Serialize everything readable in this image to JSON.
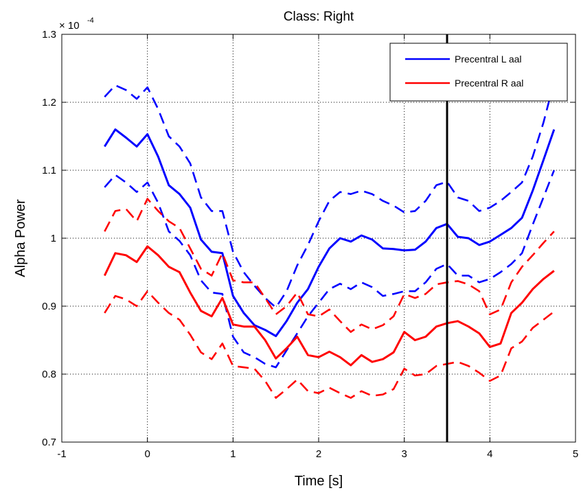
{
  "chart_data": {
    "type": "line",
    "title": "Class: Right",
    "xlabel": "Time [s]",
    "ylabel": "Alpha Power",
    "y_exponent_prefix": "× 10",
    "y_exponent_power": "-4",
    "xlim": [
      -1,
      5
    ],
    "ylim": [
      0.7,
      1.3
    ],
    "xticks": [
      -1,
      0,
      1,
      2,
      3,
      4,
      5
    ],
    "xtick_labels": [
      "-1",
      "0",
      "1",
      "2",
      "3",
      "4",
      "5"
    ],
    "yticks": [
      0.7,
      0.8,
      0.9,
      1.0,
      1.1,
      1.2,
      1.3
    ],
    "ytick_labels": [
      "0.7",
      "0.8",
      "0.9",
      "1",
      "1.1",
      "1.2",
      "1.3"
    ],
    "grid": true,
    "legend_position": "top-right",
    "vertical_line_x": 3.5,
    "colors": {
      "blue": "#0000ff",
      "red": "#ff0000",
      "marker": "#000000"
    },
    "x": [
      -0.5,
      -0.375,
      -0.25,
      -0.125,
      0,
      0.125,
      0.25,
      0.375,
      0.5,
      0.625,
      0.75,
      0.875,
      1,
      1.125,
      1.25,
      1.375,
      1.5,
      1.625,
      1.75,
      1.875,
      2,
      2.125,
      2.25,
      2.375,
      2.5,
      2.625,
      2.75,
      2.875,
      3,
      3.125,
      3.25,
      3.375,
      3.5,
      3.625,
      3.75,
      3.875,
      4,
      4.125,
      4.25,
      4.375,
      4.5,
      4.625,
      4.75
    ],
    "series": [
      {
        "name": "Precentral L aal",
        "color": "#0000ff",
        "style": "solid",
        "values": [
          1.135,
          1.16,
          1.148,
          1.135,
          1.153,
          1.12,
          1.078,
          1.065,
          1.045,
          0.998,
          0.98,
          0.978,
          0.915,
          0.89,
          0.872,
          0.865,
          0.856,
          0.878,
          0.905,
          0.925,
          0.958,
          0.985,
          1.0,
          0.995,
          1.004,
          0.998,
          0.985,
          0.984,
          0.982,
          0.983,
          0.995,
          1.015,
          1.021,
          1.002,
          1.0,
          0.99,
          0.995,
          1.005,
          1.015,
          1.03,
          1.07,
          1.115,
          1.16
        ]
      },
      {
        "name": "",
        "color": "#0000ff",
        "style": "dashed",
        "values": [
          1.208,
          1.225,
          1.218,
          1.205,
          1.222,
          1.19,
          1.15,
          1.135,
          1.11,
          1.06,
          1.04,
          1.04,
          0.98,
          0.95,
          0.93,
          0.912,
          0.898,
          0.922,
          0.96,
          0.99,
          1.025,
          1.055,
          1.068,
          1.065,
          1.07,
          1.065,
          1.055,
          1.048,
          1.038,
          1.04,
          1.055,
          1.078,
          1.083,
          1.06,
          1.055,
          1.04,
          1.045,
          1.055,
          1.068,
          1.082,
          1.12,
          1.17,
          1.23
        ]
      },
      {
        "name": "",
        "color": "#0000ff",
        "style": "dashed",
        "values": [
          1.075,
          1.093,
          1.082,
          1.068,
          1.082,
          1.052,
          1.01,
          0.996,
          0.975,
          0.938,
          0.92,
          0.918,
          0.855,
          0.832,
          0.825,
          0.815,
          0.81,
          0.835,
          0.86,
          0.885,
          0.905,
          0.925,
          0.933,
          0.925,
          0.935,
          0.928,
          0.915,
          0.918,
          0.922,
          0.922,
          0.935,
          0.955,
          0.962,
          0.945,
          0.945,
          0.935,
          0.94,
          0.95,
          0.962,
          0.978,
          1.02,
          1.06,
          1.1
        ]
      },
      {
        "name": "Precentral R aal",
        "color": "#ff0000",
        "style": "solid",
        "values": [
          0.945,
          0.978,
          0.975,
          0.965,
          0.988,
          0.975,
          0.958,
          0.95,
          0.92,
          0.893,
          0.885,
          0.912,
          0.873,
          0.87,
          0.87,
          0.85,
          0.823,
          0.838,
          0.855,
          0.828,
          0.825,
          0.833,
          0.825,
          0.813,
          0.828,
          0.818,
          0.822,
          0.832,
          0.862,
          0.85,
          0.855,
          0.87,
          0.875,
          0.878,
          0.87,
          0.86,
          0.84,
          0.845,
          0.89,
          0.905,
          0.925,
          0.94,
          0.952
        ]
      },
      {
        "name": "",
        "color": "#ff0000",
        "style": "dashed",
        "values": [
          1.01,
          1.04,
          1.043,
          1.025,
          1.058,
          1.04,
          1.025,
          1.015,
          0.985,
          0.955,
          0.945,
          0.978,
          0.938,
          0.935,
          0.935,
          0.912,
          0.888,
          0.9,
          0.92,
          0.888,
          0.885,
          0.895,
          0.878,
          0.862,
          0.873,
          0.866,
          0.872,
          0.885,
          0.918,
          0.912,
          0.918,
          0.932,
          0.935,
          0.937,
          0.932,
          0.922,
          0.888,
          0.895,
          0.935,
          0.958,
          0.975,
          0.993,
          1.01
        ]
      },
      {
        "name": "",
        "color": "#ff0000",
        "style": "dashed",
        "values": [
          0.89,
          0.915,
          0.91,
          0.9,
          0.922,
          0.905,
          0.89,
          0.88,
          0.858,
          0.832,
          0.822,
          0.845,
          0.812,
          0.81,
          0.808,
          0.79,
          0.765,
          0.778,
          0.792,
          0.775,
          0.772,
          0.78,
          0.772,
          0.765,
          0.775,
          0.768,
          0.77,
          0.778,
          0.808,
          0.798,
          0.8,
          0.812,
          0.815,
          0.818,
          0.812,
          0.802,
          0.79,
          0.798,
          0.838,
          0.848,
          0.868,
          0.88,
          0.892
        ]
      }
    ]
  }
}
